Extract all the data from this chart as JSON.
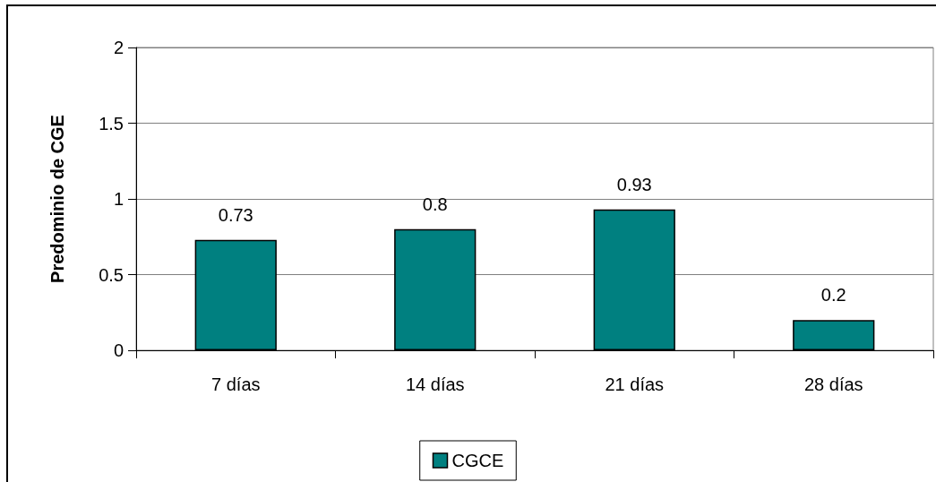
{
  "chart_data": {
    "type": "bar",
    "ylabel": "Predominio de CGE",
    "categories": [
      "7 días",
      "14 días",
      "21 días",
      "28 días"
    ],
    "series": [
      {
        "name": "CGCE",
        "color": "#008080",
        "values": [
          0.73,
          0.8,
          0.93,
          0.2
        ]
      }
    ],
    "ylim": [
      0,
      2
    ],
    "yticks": [
      0,
      0.5,
      1,
      1.5,
      2
    ],
    "grid": "y",
    "legend": "bottom",
    "data_labels": true
  }
}
